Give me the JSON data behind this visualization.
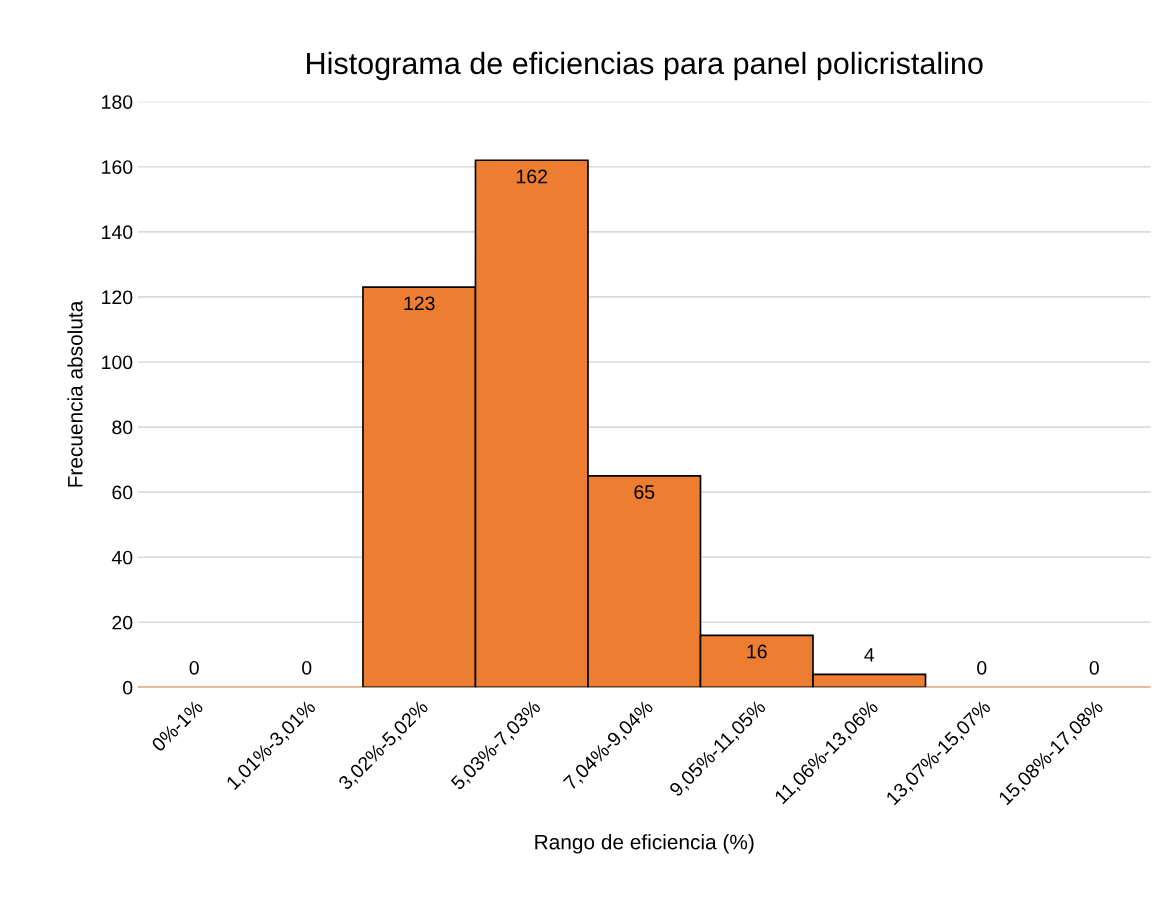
{
  "chart_data": {
    "type": "bar",
    "title": "Histograma de eficiencias para panel policristalino",
    "xlabel": "Rango de eficiencia (%)",
    "ylabel": "Frecuencia absoluta",
    "categories": [
      "0%-1%",
      "1,01%-3,01%",
      "3,02%-5,02%",
      "5,03%-7,03%",
      "7,04%-9,04%",
      "9,05%-11,05%",
      "11,06%-13,06%",
      "13,07%-15,07%",
      "15,08%-17,08%"
    ],
    "values": [
      0,
      0,
      123,
      162,
      65,
      16,
      4,
      0,
      0
    ],
    "color": "#ed7d31",
    "ylim": [
      0,
      180
    ],
    "yticks": [
      0,
      20,
      40,
      60,
      80,
      100,
      120,
      140,
      160,
      180
    ],
    "grid": "y",
    "data_labels": true
  }
}
